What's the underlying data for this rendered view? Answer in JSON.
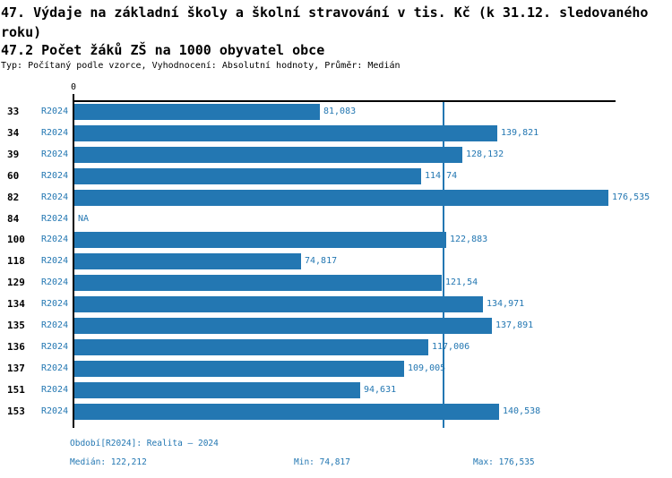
{
  "header": {
    "title": "47. Výdaje na základní školy a školní stravování v tis. Kč (k 31.12. sledovaného roku)",
    "subtitle": "47.2 Počet žáků ZŠ na 1000 obyvatel obce",
    "meta": "Typ: Počítaný podle vzorce, Vyhodnocení: Absolutní hodnoty, Průměr: Medián"
  },
  "chart_data": {
    "type": "bar",
    "orientation": "horizontal",
    "title": "47.2 Počet žáků ZŠ na 1000 obyvatel obce",
    "xlabel": "",
    "ylabel": "",
    "xlim": [
      0,
      179.2
    ],
    "grid": false,
    "axis_zero_label": "0",
    "categories": [
      "33",
      "34",
      "39",
      "60",
      "82",
      "84",
      "100",
      "118",
      "129",
      "134",
      "135",
      "136",
      "137",
      "151",
      "153"
    ],
    "series": [
      {
        "name": "R2024",
        "values": [
          81.083,
          139.821,
          128.132,
          114.74,
          176.535,
          null,
          122.883,
          74.817,
          121.54,
          134.971,
          137.891,
          117.006,
          109.005,
          94.631,
          140.538
        ],
        "value_labels": [
          "81,083",
          "139,821",
          "128,132",
          "114,74",
          "176,535",
          "NA",
          "122,883",
          "74,817",
          "121,54",
          "134,971",
          "137,891",
          "117,006",
          "109,005",
          "94,631",
          "140,538"
        ]
      }
    ],
    "median_value": 122.212,
    "median_line": true,
    "colors": {
      "bar": "#2377b2",
      "value_text": "#2377b2",
      "period_text": "#2377b2",
      "category_text": "#000000",
      "axis": "#000000",
      "median_line": "#2377b2",
      "footer_text": "#2377b2"
    }
  },
  "footer": {
    "period": "Období[R2024]: Realita – 2024",
    "median": "Medián: 122,212",
    "min": "Min: 74,817",
    "max": "Max: 176,535"
  }
}
